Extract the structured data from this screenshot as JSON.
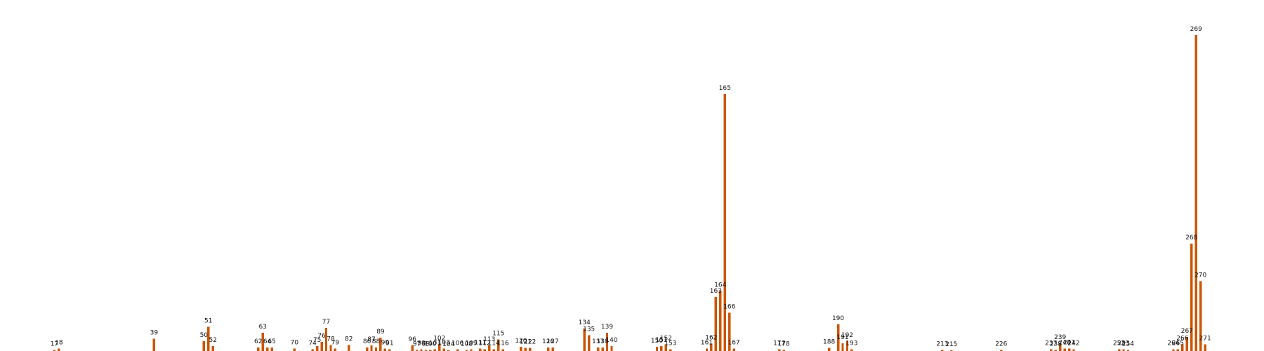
{
  "chart_data": {
    "type": "bar",
    "title": "",
    "xlabel": "",
    "ylabel": "",
    "bar_color": "#cc5500",
    "label_color": "#111111",
    "background": "#ffffff",
    "grid": false,
    "legend": "none",
    "axes_visible": false,
    "xlim": [
      5,
      284
    ],
    "ylim": [
      0,
      55
    ],
    "categories": [
      "17",
      "18",
      "39",
      "50",
      "51",
      "52",
      "62",
      "63",
      "64",
      "65",
      "70",
      "74",
      "75",
      "76",
      "77",
      "78",
      "79",
      "82",
      "86",
      "87",
      "88",
      "89",
      "90",
      "91",
      "96",
      "97",
      "98",
      "99",
      "100",
      "101",
      "102",
      "103",
      "104",
      "106",
      "108",
      "109",
      "111",
      "112",
      "113",
      "114",
      "115",
      "116",
      "120",
      "121",
      "122",
      "126",
      "127",
      "134",
      "135",
      "137",
      "138",
      "139",
      "140",
      "150",
      "151",
      "152",
      "153",
      "161",
      "162",
      "163",
      "164",
      "165",
      "166",
      "167",
      "177",
      "178",
      "188",
      "190",
      "191",
      "192",
      "193",
      "213",
      "215",
      "226",
      "237",
      "238",
      "239",
      "240",
      "241",
      "242",
      "252",
      "253",
      "254",
      "264",
      "265",
      "266",
      "267",
      "268",
      "269",
      "270",
      "271"
    ],
    "values": [
      0.2,
      0.4,
      2.0,
      1.6,
      4.0,
      0.8,
      0.6,
      3.0,
      0.6,
      0.6,
      0.4,
      0.3,
      0.8,
      1.5,
      3.8,
      1.0,
      0.4,
      1.0,
      0.6,
      0.9,
      0.6,
      2.2,
      0.4,
      0.3,
      0.9,
      0.2,
      0.3,
      0.2,
      0.2,
      0.3,
      1.1,
      0.4,
      0.1,
      0.3,
      0.2,
      0.3,
      0.4,
      0.3,
      0.9,
      0.3,
      1.9,
      0.3,
      0.7,
      0.5,
      0.5,
      0.6,
      0.6,
      3.7,
      2.6,
      0.6,
      0.6,
      3.0,
      0.8,
      0.7,
      0.8,
      1.1,
      0.3,
      0.4,
      1.2,
      8.9,
      9.9,
      42.3,
      6.3,
      0.4,
      0.3,
      0.2,
      0.5,
      4.4,
      1.3,
      1.6,
      0.3,
      0.2,
      0.1,
      0.2,
      0.3,
      0.2,
      1.3,
      0.4,
      0.4,
      0.3,
      0.3,
      0.3,
      0.2,
      0.3,
      0.3,
      1.1,
      2.3,
      17.7,
      52.0,
      11.5,
      1.1
    ]
  }
}
